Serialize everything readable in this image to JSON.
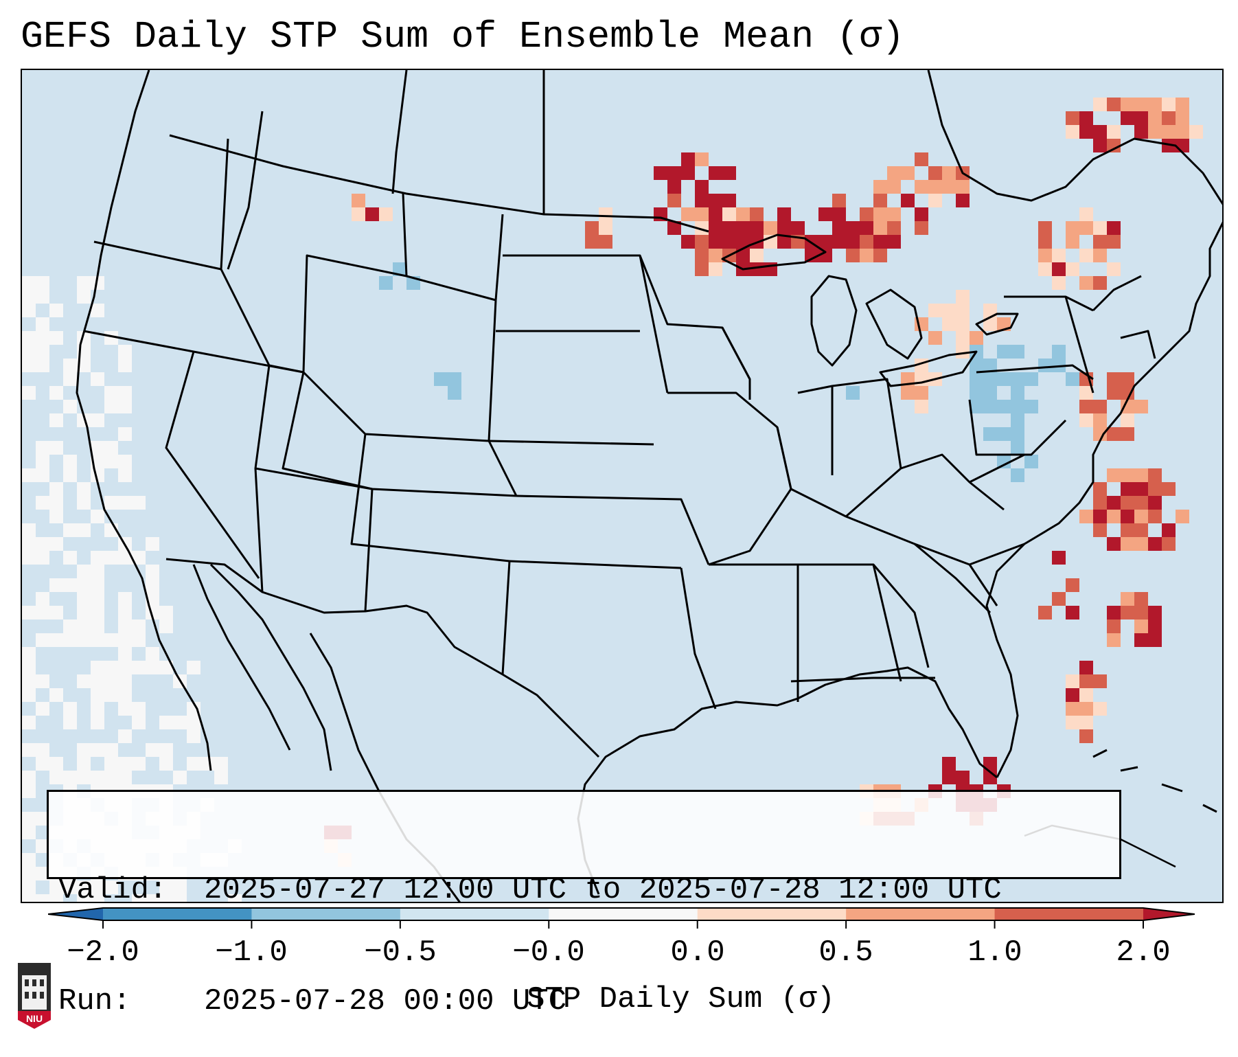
{
  "title": "GEFS Daily STP Sum of Ensemble Mean (σ)",
  "info": {
    "valid_label": "Valid:",
    "valid_value": "2025-07-27 12:00 UTC to 2025-07-28 12:00 UTC",
    "run_label": "Run:",
    "run_value": "2025-07-28 00:00 UTC"
  },
  "colorbar": {
    "label": "STP Daily Sum (σ)",
    "ticks": [
      "−2.0",
      "−1.0",
      "−0.5",
      "−0.0",
      "0.0",
      "0.5",
      "1.0",
      "2.0"
    ],
    "colors": [
      "#4393c3",
      "#92c5de",
      "#d1e5f0",
      "#f7f7f7",
      "#fddbc7",
      "#f4a582",
      "#d6604d"
    ],
    "extend_low": "#2166ac",
    "extend_high": "#b2182b"
  },
  "map": {
    "background": "#d1e3ef",
    "high_anomaly_regions": [
      "Minnesota",
      "Upper Great Lakes",
      "Northeast",
      "Mid-Atlantic coast",
      "Florida",
      "Montana"
    ],
    "low_anomaly_regions": [
      "Pennsylvania",
      "Ohio Valley",
      "Ontario"
    ]
  },
  "logo": {
    "text": "NIU"
  }
}
